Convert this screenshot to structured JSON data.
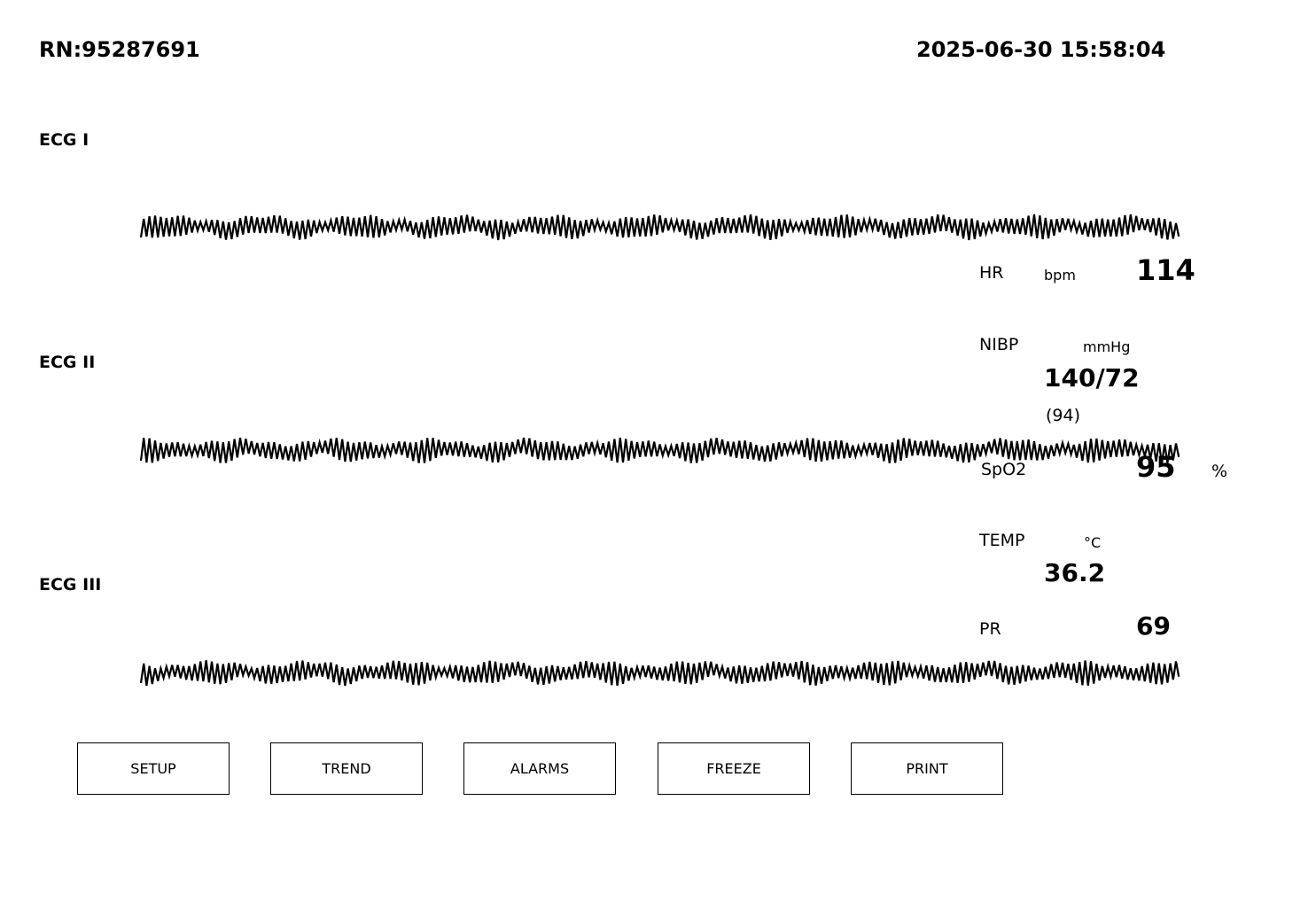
{
  "header": {
    "record_number": "RN:95287691",
    "datetime": "2025-06-30 15:58:04"
  },
  "leads": [
    {
      "label": "ECG I"
    },
    {
      "label": "ECG II"
    },
    {
      "label": "ECG III"
    }
  ],
  "vitals": {
    "hr": {
      "label": "HR",
      "unit": "bpm",
      "value": "114"
    },
    "nibp": {
      "label": "NIBP",
      "unit": "mmHg",
      "value": "140/72",
      "mean": "(94)"
    },
    "spo2": {
      "label": "SpO2",
      "unit": "%",
      "value": "95"
    },
    "temp": {
      "label": "TEMP",
      "unit": "°C",
      "value": "36.2"
    },
    "pr": {
      "label": "PR",
      "value": "69"
    }
  },
  "softkeys": {
    "setup": "SETUP",
    "trend": "TREND",
    "alarms": "ALARMS",
    "freeze": "FREEZE",
    "print": "PRINT"
  },
  "colors": {
    "background": "#ffffff",
    "trace": "#000000"
  }
}
